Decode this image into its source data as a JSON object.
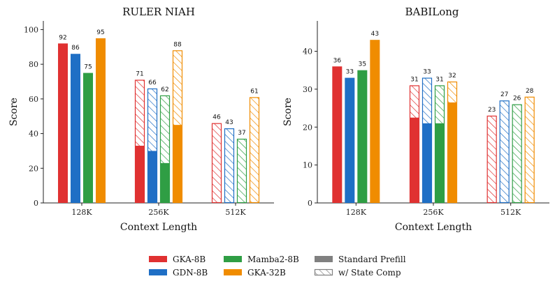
{
  "colors": {
    "GKA-8B": "#e03131",
    "GDN-8B": "#1f6fc5",
    "Mamba2-8B": "#2f9e44",
    "GKA-32B": "#f08c00",
    "legend_gray": "#808080"
  },
  "chart_data": [
    {
      "type": "bar",
      "title": "RULER NIAH",
      "xlabel": "Context Length",
      "ylabel": "Score",
      "ylim": [
        0,
        105
      ],
      "yticks": [
        "0",
        "20",
        "40",
        "60",
        "80",
        "100"
      ],
      "categories": [
        "128K",
        "256K",
        "512K"
      ],
      "series": [
        {
          "name": "GKA-8B",
          "prefill": [
            92,
            33,
            0
          ],
          "state_comp": [
            null,
            71,
            46
          ],
          "labels": [
            "92",
            "71",
            "46"
          ]
        },
        {
          "name": "GDN-8B",
          "prefill": [
            86,
            30,
            0
          ],
          "state_comp": [
            null,
            66,
            43
          ],
          "labels": [
            "86",
            "66",
            "43"
          ]
        },
        {
          "name": "Mamba2-8B",
          "prefill": [
            75,
            23,
            0
          ],
          "state_comp": [
            null,
            62,
            37
          ],
          "labels": [
            "75",
            "62",
            "37"
          ]
        },
        {
          "name": "GKA-32B",
          "prefill": [
            95,
            45,
            0
          ],
          "state_comp": [
            null,
            88,
            61
          ],
          "labels": [
            "95",
            "88",
            "61"
          ]
        }
      ],
      "grid": false
    },
    {
      "type": "bar",
      "title": "BABILong",
      "xlabel": "Context Length",
      "ylabel": "Score",
      "ylim": [
        0,
        48
      ],
      "yticks": [
        "0",
        "10",
        "20",
        "30",
        "40"
      ],
      "categories": [
        "128K",
        "256K",
        "512K"
      ],
      "series": [
        {
          "name": "GKA-8B",
          "prefill": [
            36,
            22.5,
            0
          ],
          "state_comp": [
            null,
            31,
            23
          ],
          "labels": [
            "36",
            "31",
            "23"
          ]
        },
        {
          "name": "GDN-8B",
          "prefill": [
            33,
            21,
            0
          ],
          "state_comp": [
            null,
            33,
            27
          ],
          "labels": [
            "33",
            "33",
            "27"
          ]
        },
        {
          "name": "Mamba2-8B",
          "prefill": [
            35,
            21,
            0
          ],
          "state_comp": [
            null,
            31,
            26
          ],
          "labels": [
            "35",
            "31",
            "26"
          ]
        },
        {
          "name": "GKA-32B",
          "prefill": [
            43,
            26.5,
            0
          ],
          "state_comp": [
            null,
            32,
            28
          ],
          "labels": [
            "43",
            "32",
            "28"
          ]
        }
      ],
      "grid": false
    }
  ],
  "legend": {
    "placement": "bottom-center",
    "models": [
      "GKA-8B",
      "GDN-8B",
      "Mamba2-8B",
      "GKA-32B"
    ],
    "styles": [
      "Standard Prefill",
      "w/ State Comp"
    ]
  }
}
